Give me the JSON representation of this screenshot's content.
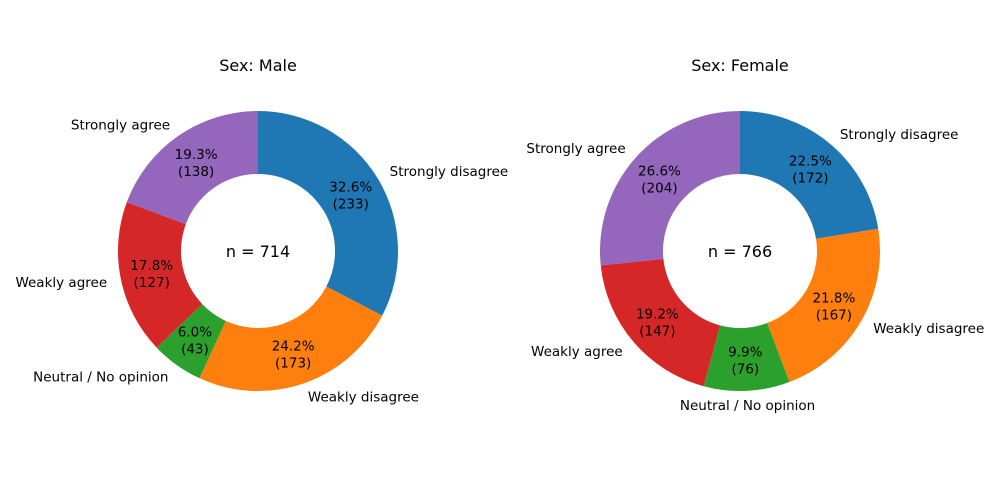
{
  "chart_data": [
    {
      "type": "pie",
      "variant": "donut",
      "title": "Sex: Male",
      "center_label": "n = 714",
      "start": "top",
      "direction": "clockwise",
      "slices": [
        {
          "label": "Strongly disagree",
          "count": 233,
          "percent": 32.6,
          "pct_text": "32.6%",
          "count_text": "(233)",
          "color": "#1f77b4"
        },
        {
          "label": "Weakly disagree",
          "count": 173,
          "percent": 24.2,
          "pct_text": "24.2%",
          "count_text": "(173)",
          "color": "#ff7f0e"
        },
        {
          "label": "Neutral / No opinion",
          "count": 43,
          "percent": 6.0,
          "pct_text": "6.0%",
          "count_text": "(43)",
          "color": "#2ca02c"
        },
        {
          "label": "Weakly agree",
          "count": 127,
          "percent": 17.8,
          "pct_text": "17.8%",
          "count_text": "(127)",
          "color": "#d62728"
        },
        {
          "label": "Strongly agree",
          "count": 138,
          "percent": 19.3,
          "pct_text": "19.3%",
          "count_text": "(138)",
          "color": "#9467bd"
        }
      ]
    },
    {
      "type": "pie",
      "variant": "donut",
      "title": "Sex: Female",
      "center_label": "n = 766",
      "start": "top",
      "direction": "clockwise",
      "slices": [
        {
          "label": "Strongly disagree",
          "count": 172,
          "percent": 22.5,
          "pct_text": "22.5%",
          "count_text": "(172)",
          "color": "#1f77b4"
        },
        {
          "label": "Weakly disagree",
          "count": 167,
          "percent": 21.8,
          "pct_text": "21.8%",
          "count_text": "(167)",
          "color": "#ff7f0e"
        },
        {
          "label": "Neutral / No opinion",
          "count": 76,
          "percent": 9.9,
          "pct_text": "9.9%",
          "count_text": "(76)",
          "color": "#2ca02c"
        },
        {
          "label": "Weakly agree",
          "count": 147,
          "percent": 19.2,
          "pct_text": "19.2%",
          "count_text": "(147)",
          "color": "#d62728"
        },
        {
          "label": "Strongly agree",
          "count": 204,
          "percent": 26.6,
          "pct_text": "26.6%",
          "count_text": "(204)",
          "color": "#9467bd"
        }
      ]
    }
  ]
}
